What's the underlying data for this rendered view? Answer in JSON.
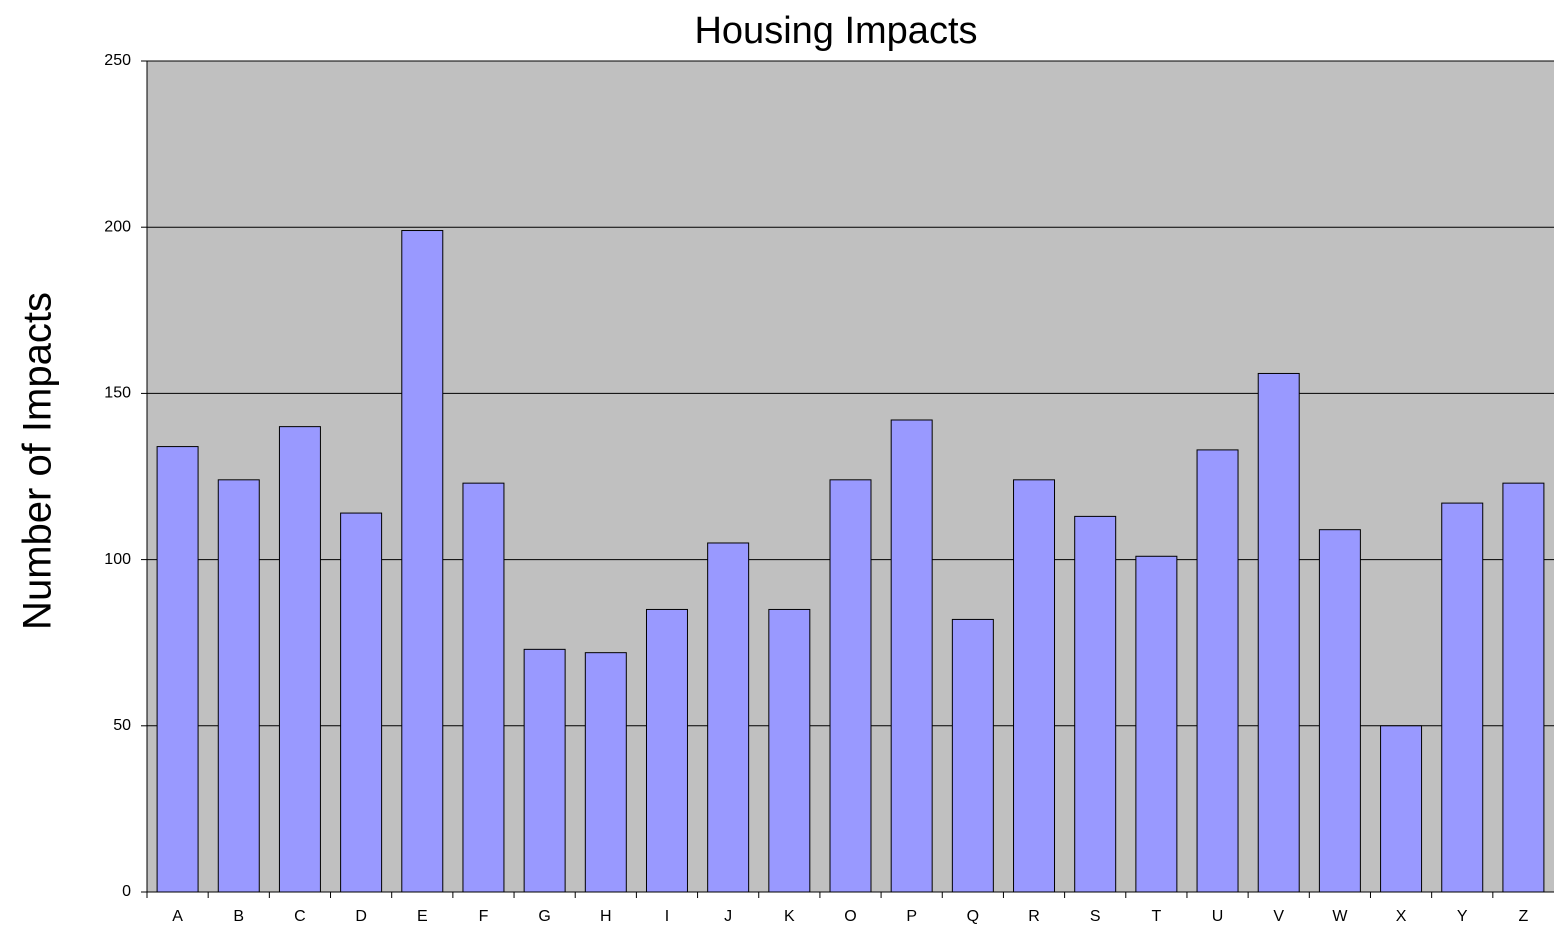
{
  "chart_data": {
    "type": "bar",
    "title": "Housing Impacts",
    "y_label": "Number of Impacts",
    "categories": [
      "A",
      "B",
      "C",
      "D",
      "E",
      "F",
      "G",
      "H",
      "I",
      "J",
      "K",
      "O",
      "P",
      "Q",
      "R",
      "S",
      "T",
      "U",
      "V",
      "W",
      "X",
      "Y",
      "Z"
    ],
    "values": [
      134,
      124,
      140,
      114,
      199,
      123,
      73,
      72,
      85,
      105,
      85,
      124,
      142,
      82,
      124,
      113,
      101,
      133,
      156,
      109,
      50,
      117,
      123
    ],
    "color": "#9999ff",
    "background": "#c0c0c0",
    "ylim": [
      0,
      250
    ],
    "yticks": [
      0,
      50,
      100,
      150,
      200,
      250
    ],
    "grid": true
  }
}
